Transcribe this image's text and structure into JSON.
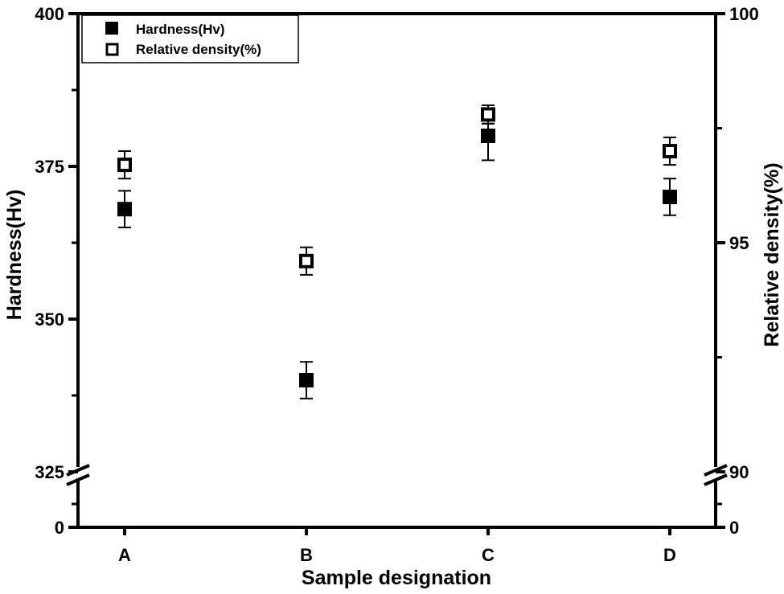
{
  "chart_data": {
    "type": "scatter",
    "title": "",
    "xlabel": "Sample designation",
    "ylabel": "Hardness(Hv)",
    "ylabel_right": "Relative density(%)",
    "categories": [
      "A",
      "B",
      "C",
      "D"
    ],
    "series": [
      {
        "name": "Hardness(Hv)",
        "axis": "left",
        "marker": "filled-square",
        "values": [
          368,
          340,
          380,
          370
        ],
        "error_plus": [
          3,
          3,
          2,
          3
        ],
        "error_minus": [
          3,
          3,
          4,
          3
        ]
      },
      {
        "name": "Relative density(%)",
        "axis": "right",
        "marker": "open-square",
        "values": [
          96.7,
          94.6,
          97.8,
          97.0
        ],
        "error_plus": [
          0.3,
          0.3,
          0.2,
          0.3
        ],
        "error_minus": [
          0.3,
          0.3,
          0.2,
          0.3
        ]
      }
    ],
    "left_axis": {
      "ticks": [
        "0",
        "325",
        "350",
        "375",
        "400"
      ],
      "ylim": [
        325,
        400
      ],
      "break_between": [
        0,
        325
      ]
    },
    "right_axis": {
      "ticks": [
        "0",
        "90",
        "95",
        "100"
      ],
      "ylim": [
        90,
        100
      ],
      "break_between": [
        0,
        90
      ]
    },
    "legend": {
      "position": "upper-left",
      "entries": [
        "Hardness(Hv)",
        "Relative density(%)"
      ]
    },
    "grid": false
  }
}
